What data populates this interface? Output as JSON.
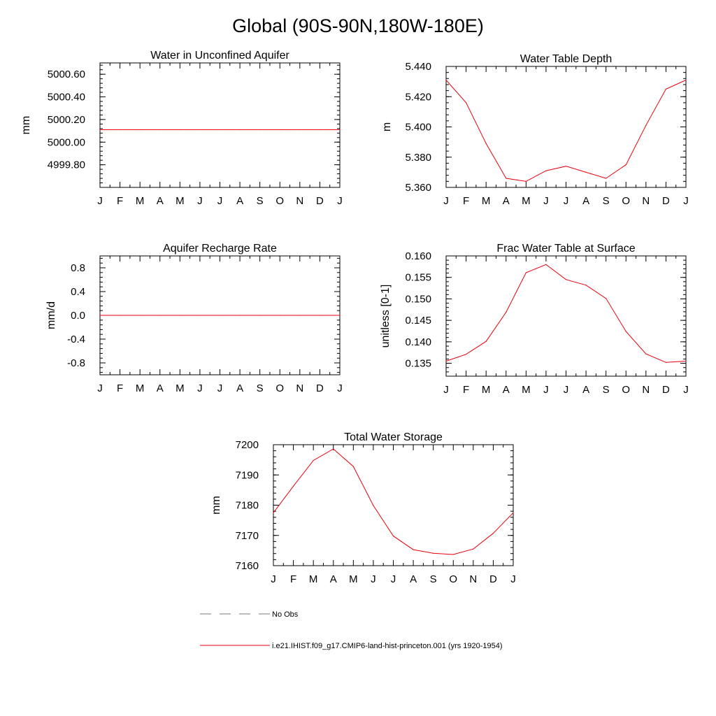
{
  "title": "Global (90S-90N,180W-180E)",
  "months": [
    "J",
    "F",
    "M",
    "A",
    "M",
    "J",
    "J",
    "A",
    "S",
    "O",
    "N",
    "D",
    "J"
  ],
  "chart_data": [
    {
      "type": "line",
      "title": "Water in Unconfined Aquifer",
      "ylabel": "mm",
      "ylim": [
        4999.6,
        5000.7
      ],
      "yticks": [
        4999.8,
        5000.0,
        5000.2,
        5000.4,
        5000.6
      ],
      "ytick_labels": [
        "4999.80",
        "5000.00",
        "5000.20",
        "5000.40",
        "5000.60"
      ],
      "categories": [
        "J",
        "F",
        "M",
        "A",
        "M",
        "J",
        "J",
        "A",
        "S",
        "O",
        "N",
        "D",
        "J"
      ],
      "series": [
        {
          "color": "#e8000b",
          "values": [
            5000.11,
            5000.11,
            5000.11,
            5000.11,
            5000.11,
            5000.11,
            5000.11,
            5000.11,
            5000.11,
            5000.11,
            5000.11,
            5000.11,
            5000.11
          ]
        }
      ]
    },
    {
      "type": "line",
      "title": "Water Table Depth",
      "ylabel": "m",
      "ylim": [
        5.36,
        5.44
      ],
      "yticks": [
        5.36,
        5.38,
        5.4,
        5.42,
        5.44
      ],
      "ytick_labels": [
        "5.360",
        "5.380",
        "5.400",
        "5.420",
        "5.440"
      ],
      "categories": [
        "J",
        "F",
        "M",
        "A",
        "M",
        "J",
        "J",
        "A",
        "S",
        "O",
        "N",
        "D",
        "J"
      ],
      "series": [
        {
          "color": "#e8000b",
          "values": [
            5.431,
            5.416,
            5.389,
            5.366,
            5.364,
            5.371,
            5.374,
            5.37,
            5.366,
            5.375,
            5.401,
            5.425,
            5.431
          ]
        }
      ]
    },
    {
      "type": "line",
      "title": "Aquifer Recharge Rate",
      "ylabel": "mm/d",
      "ylim": [
        -1.0,
        1.0
      ],
      "yticks": [
        -0.8,
        -0.4,
        0.0,
        0.4,
        0.8
      ],
      "ytick_labels": [
        "-0.8",
        "-0.4",
        "0.0",
        "0.4",
        "0.8"
      ],
      "categories": [
        "J",
        "F",
        "M",
        "A",
        "M",
        "J",
        "J",
        "A",
        "S",
        "O",
        "N",
        "D",
        "J"
      ],
      "series": [
        {
          "color": "#e8000b",
          "values": [
            0,
            0,
            0,
            0,
            0,
            0,
            0,
            0,
            0,
            0,
            0,
            0,
            0
          ]
        }
      ]
    },
    {
      "type": "line",
      "title": "Frac Water Table at Surface",
      "ylabel": "unitless [0-1]",
      "ylim": [
        0.132,
        0.16
      ],
      "yticks": [
        0.135,
        0.14,
        0.145,
        0.15,
        0.155,
        0.16
      ],
      "ytick_labels": [
        "0.135",
        "0.140",
        "0.145",
        "0.150",
        "0.155",
        "0.160"
      ],
      "categories": [
        "J",
        "F",
        "M",
        "A",
        "M",
        "J",
        "J",
        "A",
        "S",
        "O",
        "N",
        "D",
        "J"
      ],
      "series": [
        {
          "color": "#e8000b",
          "values": [
            0.1355,
            0.1371,
            0.1401,
            0.1469,
            0.1561,
            0.158,
            0.1545,
            0.1532,
            0.1501,
            0.1424,
            0.1372,
            0.1352,
            0.1355
          ]
        }
      ]
    },
    {
      "type": "line",
      "title": "Total Water Storage",
      "ylabel": "mm",
      "ylim": [
        7160,
        7200
      ],
      "yticks": [
        7160,
        7170,
        7180,
        7190,
        7200
      ],
      "ytick_labels": [
        "7160",
        "7170",
        "7180",
        "7190",
        "7200"
      ],
      "categories": [
        "J",
        "F",
        "M",
        "A",
        "M",
        "J",
        "J",
        "A",
        "S",
        "O",
        "N",
        "D",
        "J"
      ],
      "series": [
        {
          "color": "#e8000b",
          "values": [
            7177.5,
            7186.3,
            7194.8,
            7198.6,
            7192.8,
            7179.9,
            7169.8,
            7165.3,
            7164.1,
            7163.7,
            7165.5,
            7170.7,
            7177.5
          ]
        }
      ]
    }
  ],
  "legend": [
    {
      "label": "No Obs",
      "color": "#777777",
      "dash": "dashed"
    },
    {
      "label": "i.e21.IHIST.f09_g17.CMIP6-land-hist-princeton.001 (yrs 1920-1954)",
      "color": "#e8000b",
      "dash": "solid"
    }
  ]
}
